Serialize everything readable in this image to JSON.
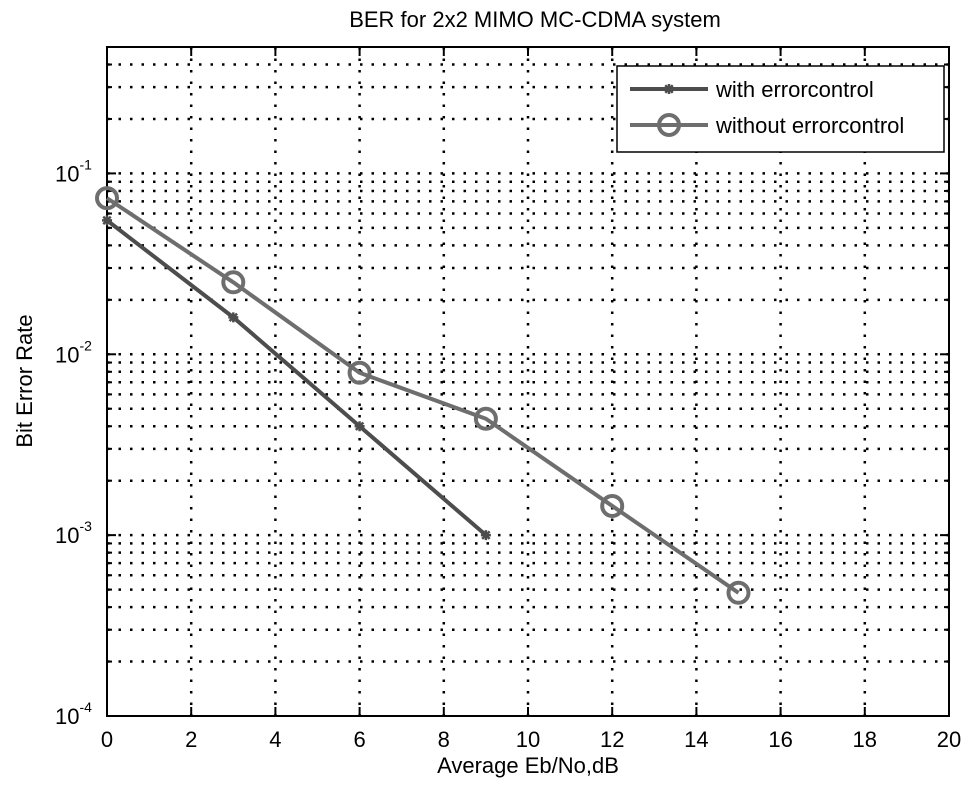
{
  "chart_data": {
    "type": "line",
    "title": "BER for 2x2 MIMO MC-CDMA system",
    "xlabel": "Average Eb/No,dB",
    "ylabel": "Bit Error Rate",
    "xlim": [
      0,
      20
    ],
    "ylim": [
      0.0001,
      0.5
    ],
    "yscale": "log",
    "x_ticks": [
      0,
      2,
      4,
      6,
      8,
      10,
      12,
      14,
      16,
      18,
      20
    ],
    "y_ticks": [
      {
        "base": "10",
        "exp": "-4"
      },
      {
        "base": "10",
        "exp": "-3"
      },
      {
        "base": "10",
        "exp": "-2"
      },
      {
        "base": "10",
        "exp": "-1"
      }
    ],
    "grid": true,
    "legend_position": "top-right",
    "series": [
      {
        "name": "with errorcontrol",
        "color": "#4d4d4d",
        "marker": "asterisk",
        "x": [
          0,
          3,
          6,
          9
        ],
        "y": [
          0.055,
          0.016,
          0.004,
          0.001
        ]
      },
      {
        "name": "without errorcontrol",
        "color": "#6e6e6e",
        "marker": "circle",
        "x": [
          0,
          3,
          6,
          9,
          12,
          15
        ],
        "y": [
          0.073,
          0.025,
          0.0079,
          0.0044,
          0.00145,
          0.00048
        ]
      }
    ]
  }
}
